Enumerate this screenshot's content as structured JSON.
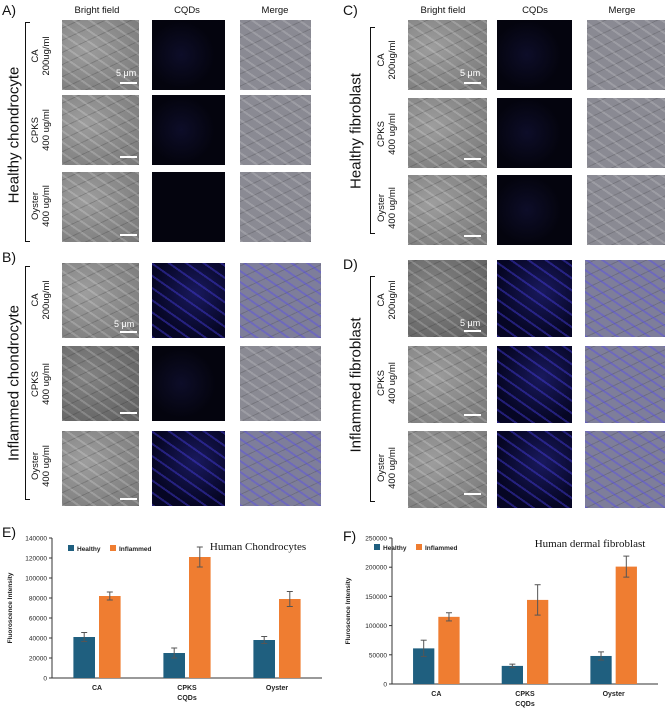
{
  "panels": {
    "A": {
      "letter": "A)",
      "group": "Healthy chondrocyte",
      "columns": [
        "Bright field",
        "CQDs",
        "Merge"
      ],
      "rows": [
        {
          "name": "CA",
          "dose": "200ug/ml"
        },
        {
          "name": "CPKS",
          "dose": "400 ug/ml"
        },
        {
          "name": "Oyster",
          "dose": "400 ug/ml"
        }
      ],
      "scale_bar": "5 μm"
    },
    "B": {
      "letter": "B)",
      "group": "Inflammed chondrocyte",
      "rows": [
        {
          "name": "CA",
          "dose": "200ug/ml"
        },
        {
          "name": "CPKS",
          "dose": "400 ug/ml"
        },
        {
          "name": "Oyster",
          "dose": "400 ug/ml"
        }
      ],
      "scale_bar": "5 μm"
    },
    "C": {
      "letter": "C)",
      "group": "Healthy fibroblast",
      "columns": [
        "Bright field",
        "CQDs",
        "Merge"
      ],
      "rows": [
        {
          "name": "CA",
          "dose": "200ug/ml"
        },
        {
          "name": "CPKS",
          "dose": "400 ug/ml"
        },
        {
          "name": "Oyster",
          "dose": "400 ug/ml"
        }
      ],
      "scale_bar": "5 μm"
    },
    "D": {
      "letter": "D)",
      "group": "Inflammed fibroblast",
      "rows": [
        {
          "name": "CA",
          "dose": "200ug/ml"
        },
        {
          "name": "CPKS",
          "dose": "400 ug/ml"
        },
        {
          "name": "Oyster",
          "dose": "400 ug/ml"
        }
      ],
      "scale_bar": "5 μm"
    },
    "E": {
      "letter": "E)"
    },
    "F": {
      "letter": "F)"
    }
  },
  "colors": {
    "healthy": "#1f5f7f",
    "inflamed": "#ef7d31",
    "error": "#555555"
  },
  "chart_data": [
    {
      "type": "bar",
      "title": "Human Chondrocytes",
      "xlabel": "CQDs",
      "ylabel": "Fluoroscence Intensity",
      "categories": [
        "CA",
        "CPKS",
        "Oyster"
      ],
      "series": [
        {
          "name": "Healthy",
          "values": [
            41000,
            25000,
            38000
          ],
          "errors": [
            4500,
            5000,
            3500
          ]
        },
        {
          "name": "Inflammed",
          "values": [
            82000,
            121000,
            79000
          ],
          "errors": [
            4000,
            10000,
            7500
          ]
        }
      ],
      "ylim": [
        0,
        140000
      ],
      "yticks": [
        "0",
        "20000",
        "40000",
        "60000",
        "80000",
        "100000",
        "120000",
        "140000"
      ],
      "legend": "top-left",
      "grid": false
    },
    {
      "type": "bar",
      "title": "Human dermal fibroblast",
      "xlabel": "CQDs",
      "ylabel": "Fluroscence Intensity",
      "categories": [
        "CA",
        "CPKS",
        "Oyster"
      ],
      "series": [
        {
          "name": "Healthy",
          "values": [
            61000,
            31000,
            48000
          ],
          "errors": [
            14000,
            3000,
            7000
          ]
        },
        {
          "name": "Inflammed",
          "values": [
            115000,
            144000,
            201000
          ],
          "errors": [
            7000,
            26000,
            18000
          ]
        }
      ],
      "ylim": [
        0,
        250000
      ],
      "yticks": [
        "0",
        "50000",
        "100000",
        "150000",
        "200000",
        "250000"
      ],
      "legend": "top-left",
      "grid": false
    }
  ]
}
